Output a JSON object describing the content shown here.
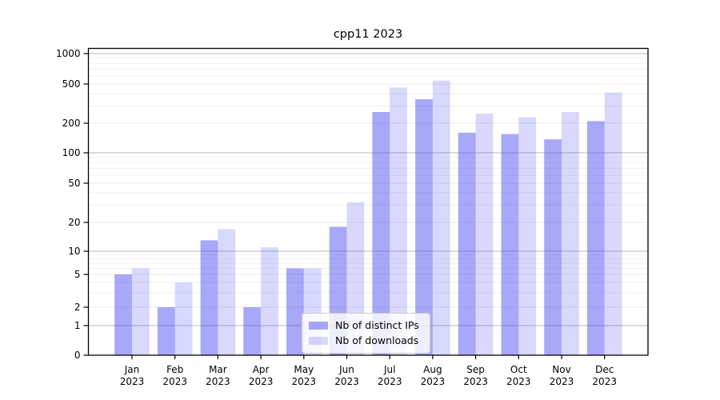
{
  "figure": {
    "background": "#ffffff",
    "text_color": "#000000"
  },
  "chart_data": {
    "type": "bar",
    "title": "cpp11 2023",
    "categories": [
      "Jan",
      "Feb",
      "Mar",
      "Apr",
      "May",
      "Jun",
      "Jul",
      "Aug",
      "Sep",
      "Oct",
      "Nov",
      "Dec"
    ],
    "year_label": "2023",
    "series": [
      {
        "name": "Nb of distinct IPs",
        "color": "rgba(70,70,240,0.47)",
        "values": [
          5,
          2,
          13,
          2,
          6,
          18,
          260,
          350,
          160,
          155,
          137,
          210
        ]
      },
      {
        "name": "Nb of downloads",
        "color": "rgba(70,70,240,0.21)",
        "values": [
          6,
          4,
          17,
          11,
          6,
          32,
          460,
          540,
          250,
          230,
          260,
          410
        ]
      }
    ],
    "y_axis": {
      "scale": "symlog",
      "ticks": [
        0,
        1,
        2,
        5,
        10,
        20,
        50,
        100,
        200,
        500,
        1000
      ],
      "decade_lines": [
        1,
        10,
        100,
        1000
      ],
      "range": [
        0,
        1150
      ]
    },
    "grid": {
      "major": true,
      "minor": true,
      "decade_color": "#b8b8b8",
      "minor_color": "#ededed",
      "labeled_minor_color": "#e4e4e4"
    },
    "legend": {
      "position": "inside-bottom-center"
    }
  }
}
